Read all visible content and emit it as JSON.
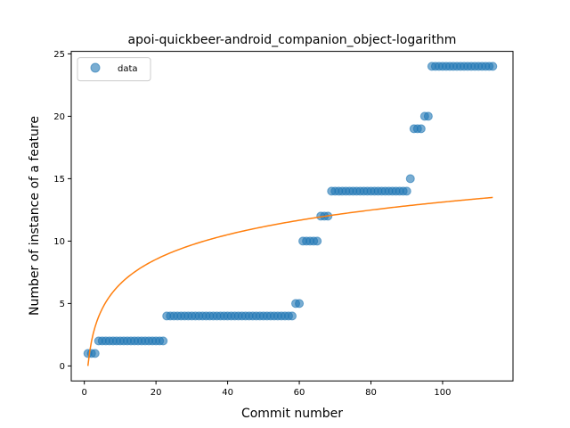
{
  "chart_data": {
    "type": "scatter",
    "title": "apoi-quickbeer-android_companion_object-logarithm",
    "xlabel": "Commit number",
    "ylabel": "Number of instance of a feature",
    "xlim": [
      -3.65,
      119.65
    ],
    "ylim": [
      -1.2,
      25.2
    ],
    "xticks": [
      0,
      20,
      40,
      60,
      80,
      100
    ],
    "yticks": [
      0,
      5,
      10,
      15,
      20,
      25
    ],
    "grid": false,
    "legend": {
      "placement": "top-left",
      "entries": [
        "data"
      ]
    },
    "colors": {
      "data": "#1f77b4",
      "fit": "#ff7f0e"
    },
    "series": [
      {
        "name": "data",
        "kind": "scatter",
        "x": [
          1,
          2,
          3,
          4,
          5,
          6,
          7,
          8,
          9,
          10,
          11,
          12,
          13,
          14,
          15,
          16,
          17,
          18,
          19,
          20,
          21,
          22,
          23,
          24,
          25,
          26,
          27,
          28,
          29,
          30,
          31,
          32,
          33,
          34,
          35,
          36,
          37,
          38,
          39,
          40,
          41,
          42,
          43,
          44,
          45,
          46,
          47,
          48,
          49,
          50,
          51,
          52,
          53,
          54,
          55,
          56,
          57,
          58,
          59,
          60,
          61,
          62,
          63,
          64,
          65,
          66,
          67,
          68,
          69,
          70,
          71,
          72,
          73,
          74,
          75,
          76,
          77,
          78,
          79,
          80,
          81,
          82,
          83,
          84,
          85,
          86,
          87,
          88,
          89,
          90,
          91,
          92,
          93,
          94,
          95,
          96,
          97,
          98,
          99,
          100,
          101,
          102,
          103,
          104,
          105,
          106,
          107,
          108,
          109,
          110,
          111,
          112,
          113,
          114
        ],
        "y": [
          1,
          1,
          1,
          2,
          2,
          2,
          2,
          2,
          2,
          2,
          2,
          2,
          2,
          2,
          2,
          2,
          2,
          2,
          2,
          2,
          2,
          2,
          4,
          4,
          4,
          4,
          4,
          4,
          4,
          4,
          4,
          4,
          4,
          4,
          4,
          4,
          4,
          4,
          4,
          4,
          4,
          4,
          4,
          4,
          4,
          4,
          4,
          4,
          4,
          4,
          4,
          4,
          4,
          4,
          4,
          4,
          4,
          4,
          5,
          5,
          10,
          10,
          10,
          10,
          10,
          12,
          12,
          12,
          14,
          14,
          14,
          14,
          14,
          14,
          14,
          14,
          14,
          14,
          14,
          14,
          14,
          14,
          14,
          14,
          14,
          14,
          14,
          14,
          14,
          14,
          15,
          19,
          19,
          19,
          20,
          20,
          24,
          24,
          24,
          24,
          24,
          24,
          24,
          24,
          24,
          24,
          24,
          24,
          24,
          24,
          24,
          24,
          24,
          24
        ]
      },
      {
        "name": "",
        "kind": "line",
        "model": "y = a*ln(x)",
        "a": 2.85,
        "x_range": [
          1,
          114
        ]
      }
    ]
  }
}
